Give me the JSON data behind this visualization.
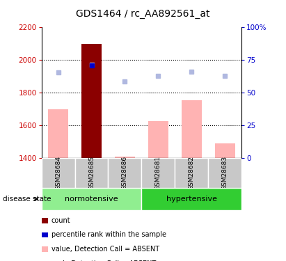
{
  "title": "GDS1464 / rc_AA892561_at",
  "samples": [
    "GSM28684",
    "GSM28685",
    "GSM28686",
    "GSM28681",
    "GSM28682",
    "GSM28683"
  ],
  "group_labels": [
    "normotensive",
    "hypertensive"
  ],
  "ylim_left": [
    1400,
    2200
  ],
  "ylim_right": [
    0,
    100
  ],
  "yticks_left": [
    1400,
    1600,
    1800,
    2000,
    2200
  ],
  "yticks_right": [
    0,
    25,
    50,
    75,
    100
  ],
  "bar_values": [
    1700,
    2100,
    1410,
    1625,
    1755,
    1490
  ],
  "bar_colors": [
    "#ffb3b3",
    "#8b0000",
    "#ffb3b3",
    "#ffb3b3",
    "#ffb3b3",
    "#ffb3b3"
  ],
  "dot_values_rank": [
    1925,
    1970,
    1870,
    1905,
    1930,
    1905
  ],
  "dot_color_rank": "#b0b8e0",
  "percentile_value": 1965,
  "percentile_sample_idx": 1,
  "percentile_color": "#0000cc",
  "bar_bottom": 1400,
  "normotensive_color": "#90ee90",
  "hypertensive_color": "#32cd32",
  "group_bg_color": "#c8c8c8",
  "legend_items": [
    {
      "color": "#8b0000",
      "label": "count"
    },
    {
      "color": "#0000cc",
      "label": "percentile rank within the sample"
    },
    {
      "color": "#ffb3b3",
      "label": "value, Detection Call = ABSENT"
    },
    {
      "color": "#b0b8e0",
      "label": "rank, Detection Call = ABSENT"
    }
  ],
  "ylabel_left_color": "#cc0000",
  "ylabel_right_color": "#0000cc",
  "title_fontsize": 10,
  "tick_fontsize": 7.5,
  "sample_fontsize": 6.5,
  "group_fontsize": 8,
  "legend_fontsize": 7
}
